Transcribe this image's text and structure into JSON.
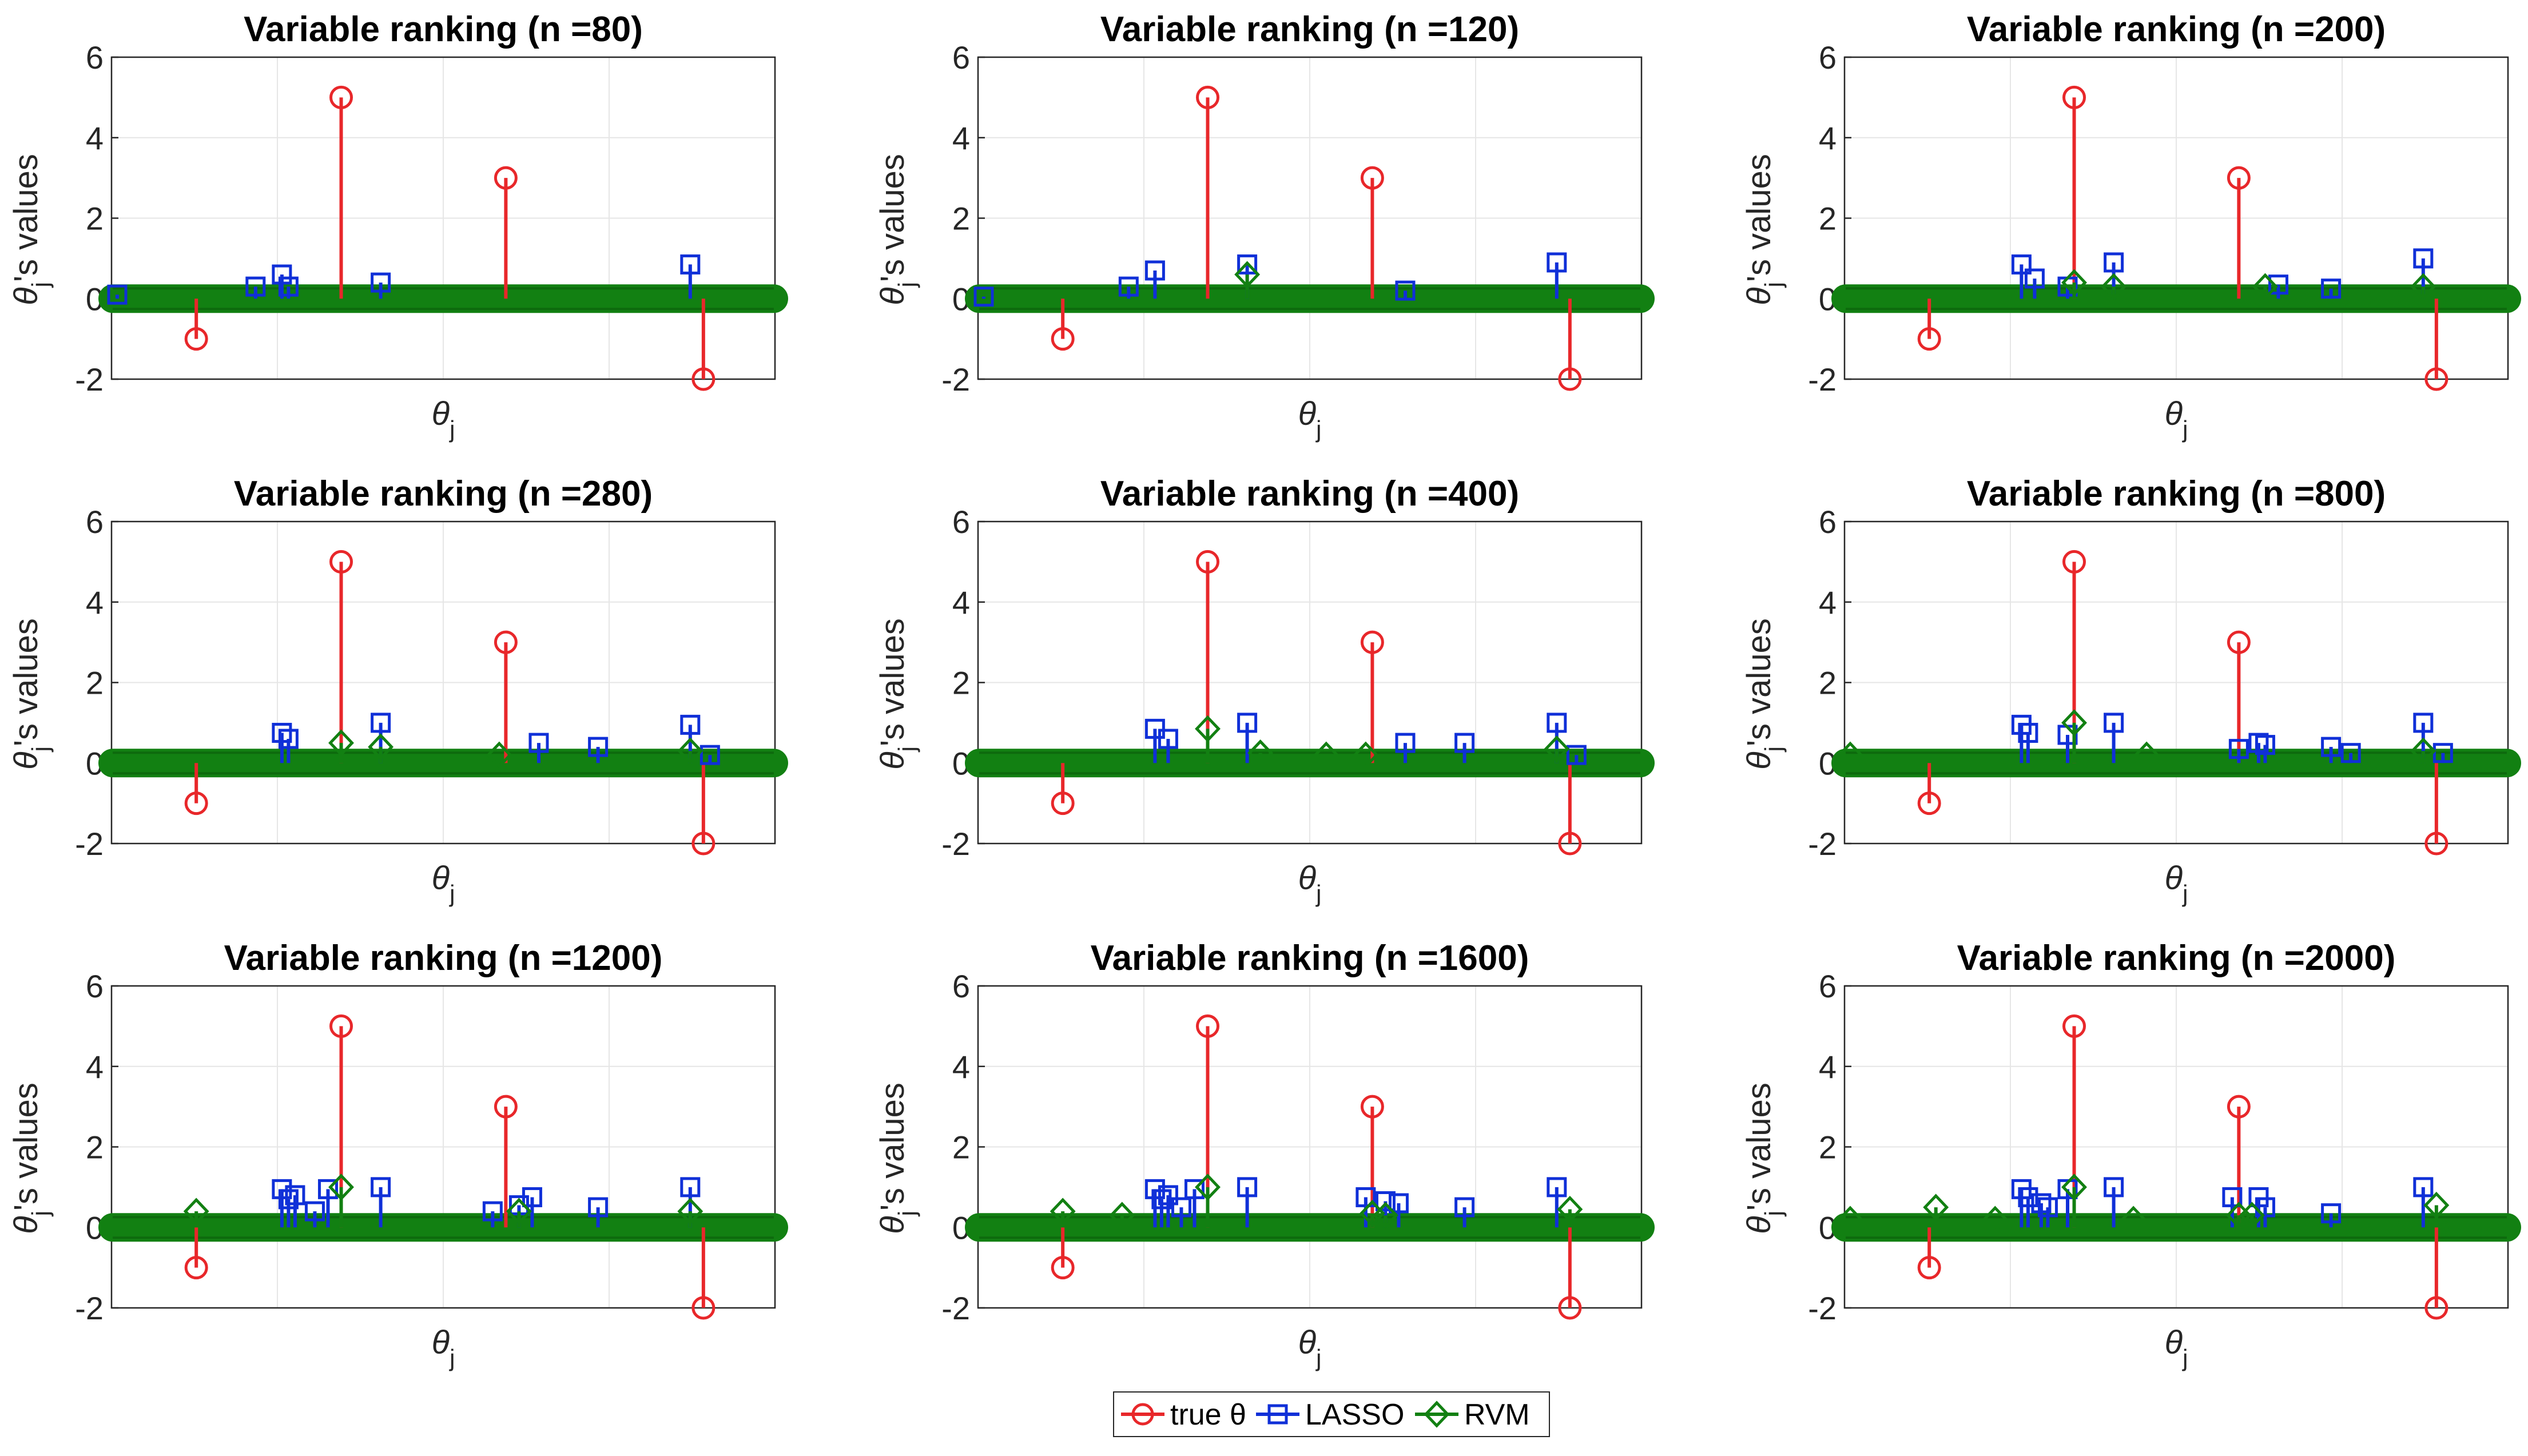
{
  "colors": {
    "true_theta": "#e8272a",
    "lasso": "#1030d8",
    "rvm": "#128012",
    "grid": "#e6e6e6",
    "axis": "#262626"
  },
  "legend": {
    "entries": [
      {
        "label": "true θ",
        "key": "true"
      },
      {
        "label": "LASSO",
        "key": "lasso"
      },
      {
        "label": "RVM",
        "key": "rvm"
      }
    ]
  },
  "chart_data": [
    {
      "type": "stem",
      "title": "Variable ranking (n =80)",
      "xlabel": "θj",
      "ylabel": "θj's values",
      "yticks": [
        "6",
        "4",
        "2",
        "0",
        "-2"
      ],
      "ylim": [
        -2,
        6
      ],
      "xlim": [
        1,
        100
      ],
      "series": [
        {
          "name": "true θ",
          "key": "true",
          "x": [
            13,
            35,
            60,
            90
          ],
          "values": [
            -1,
            5,
            3,
            -2
          ]
        },
        {
          "name": "LASSO",
          "key": "lasso",
          "x": [
            1,
            22,
            26,
            27,
            41,
            88
          ],
          "values": [
            0.1,
            0.3,
            0.6,
            0.3,
            0.4,
            0.85
          ]
        },
        {
          "name": "RVM",
          "key": "rvm",
          "x": [],
          "values": []
        }
      ]
    },
    {
      "type": "stem",
      "title": "Variable ranking (n =120)",
      "xlabel": "θj",
      "ylabel": "θj's values",
      "yticks": [
        "6",
        "4",
        "2",
        "0",
        "-2"
      ],
      "ylim": [
        -2,
        6
      ],
      "xlim": [
        1,
        100
      ],
      "series": [
        {
          "name": "true θ",
          "key": "true",
          "x": [
            13,
            35,
            60,
            90
          ],
          "values": [
            -1,
            5,
            3,
            -2
          ]
        },
        {
          "name": "LASSO",
          "key": "lasso",
          "x": [
            1,
            23,
            27,
            41,
            65,
            88
          ],
          "values": [
            0.05,
            0.3,
            0.7,
            0.85,
            0.2,
            0.9
          ]
        },
        {
          "name": "RVM",
          "key": "rvm",
          "x": [
            41
          ],
          "values": [
            0.6
          ]
        }
      ]
    },
    {
      "type": "stem",
      "title": "Variable ranking (n =200)",
      "xlabel": "θj",
      "ylabel": "θj's values",
      "yticks": [
        "6",
        "4",
        "2",
        "0",
        "-2"
      ],
      "ylim": [
        -2,
        6
      ],
      "xlim": [
        1,
        100
      ],
      "series": [
        {
          "name": "true θ",
          "key": "true",
          "x": [
            13,
            35,
            60,
            90
          ],
          "values": [
            -1,
            5,
            3,
            -2
          ]
        },
        {
          "name": "LASSO",
          "key": "lasso",
          "x": [
            27,
            29,
            34,
            41,
            66,
            74,
            88
          ],
          "values": [
            0.85,
            0.5,
            0.3,
            0.9,
            0.35,
            0.25,
            1.0
          ]
        },
        {
          "name": "RVM",
          "key": "rvm",
          "x": [
            35,
            41,
            64,
            88
          ],
          "values": [
            0.4,
            0.3,
            0.3,
            0.3
          ]
        }
      ]
    },
    {
      "type": "stem",
      "title": "Variable ranking (n =280)",
      "xlabel": "θj",
      "ylabel": "θj's values",
      "yticks": [
        "6",
        "4",
        "2",
        "0",
        "-2"
      ],
      "ylim": [
        -2,
        6
      ],
      "xlim": [
        1,
        100
      ],
      "series": [
        {
          "name": "true θ",
          "key": "true",
          "x": [
            13,
            35,
            60,
            90
          ],
          "values": [
            -1,
            5,
            3,
            -2
          ]
        },
        {
          "name": "LASSO",
          "key": "lasso",
          "x": [
            26,
            27,
            41,
            65,
            74,
            88,
            91
          ],
          "values": [
            0.75,
            0.6,
            1.0,
            0.5,
            0.4,
            0.95,
            0.2
          ]
        },
        {
          "name": "RVM",
          "key": "rvm",
          "x": [
            35,
            41,
            59,
            88
          ],
          "values": [
            0.5,
            0.4,
            0.2,
            0.3
          ]
        }
      ]
    },
    {
      "type": "stem",
      "title": "Variable ranking (n =400)",
      "xlabel": "θj",
      "ylabel": "θj's values",
      "yticks": [
        "6",
        "4",
        "2",
        "0",
        "-2"
      ],
      "ylim": [
        -2,
        6
      ],
      "xlim": [
        1,
        100
      ],
      "series": [
        {
          "name": "true θ",
          "key": "true",
          "x": [
            13,
            35,
            60,
            90
          ],
          "values": [
            -1,
            5,
            3,
            -2
          ]
        },
        {
          "name": "LASSO",
          "key": "lasso",
          "x": [
            27,
            29,
            41,
            65,
            74,
            88,
            91
          ],
          "values": [
            0.85,
            0.6,
            1.0,
            0.5,
            0.5,
            1.0,
            0.2
          ]
        },
        {
          "name": "RVM",
          "key": "rvm",
          "x": [
            35,
            43,
            53,
            59,
            88
          ],
          "values": [
            0.85,
            0.25,
            0.2,
            0.2,
            0.35
          ]
        }
      ]
    },
    {
      "type": "stem",
      "title": "Variable ranking (n =800)",
      "xlabel": "θj",
      "ylabel": "θj's values",
      "yticks": [
        "6",
        "4",
        "2",
        "0",
        "-2"
      ],
      "ylim": [
        -2,
        6
      ],
      "xlim": [
        1,
        100
      ],
      "series": [
        {
          "name": "true θ",
          "key": "true",
          "x": [
            13,
            35,
            60,
            90
          ],
          "values": [
            -1,
            5,
            3,
            -2
          ]
        },
        {
          "name": "LASSO",
          "key": "lasso",
          "x": [
            27,
            28,
            34,
            41,
            60,
            63,
            64,
            74,
            77,
            88,
            91
          ],
          "values": [
            0.95,
            0.75,
            0.7,
            1.0,
            0.35,
            0.5,
            0.45,
            0.4,
            0.25,
            1.0,
            0.25
          ]
        },
        {
          "name": "RVM",
          "key": "rvm",
          "x": [
            1,
            35,
            46,
            88
          ],
          "values": [
            0.2,
            1.0,
            0.2,
            0.3
          ]
        }
      ]
    },
    {
      "type": "stem",
      "title": "Variable ranking (n =1200)",
      "xlabel": "θj",
      "ylabel": "θj's values",
      "yticks": [
        "6",
        "4",
        "2",
        "0",
        "-2"
      ],
      "ylim": [
        -2,
        6
      ],
      "xlim": [
        1,
        100
      ],
      "series": [
        {
          "name": "true θ",
          "key": "true",
          "x": [
            13,
            35,
            60,
            90
          ],
          "values": [
            -1,
            5,
            3,
            -2
          ]
        },
        {
          "name": "LASSO",
          "key": "lasso",
          "x": [
            26,
            27,
            28,
            31,
            33,
            41,
            58,
            62,
            64,
            74,
            88
          ],
          "values": [
            0.95,
            0.7,
            0.8,
            0.4,
            0.95,
            1.0,
            0.4,
            0.55,
            0.75,
            0.5,
            1.0
          ]
        },
        {
          "name": "RVM",
          "key": "rvm",
          "x": [
            13,
            35,
            62,
            88
          ],
          "values": [
            0.4,
            1.0,
            0.4,
            0.4
          ]
        }
      ]
    },
    {
      "type": "stem",
      "title": "Variable ranking (n =1600)",
      "xlabel": "θj",
      "ylabel": "θj's values",
      "yticks": [
        "6",
        "4",
        "2",
        "0",
        "-2"
      ],
      "ylim": [
        -2,
        6
      ],
      "xlim": [
        1,
        100
      ],
      "series": [
        {
          "name": "true θ",
          "key": "true",
          "x": [
            13,
            35,
            60,
            90
          ],
          "values": [
            -1,
            5,
            3,
            -2
          ]
        },
        {
          "name": "LASSO",
          "key": "lasso",
          "x": [
            27,
            28,
            29,
            31,
            33,
            41,
            59,
            62,
            64,
            74,
            88
          ],
          "values": [
            0.95,
            0.7,
            0.8,
            0.5,
            0.95,
            1.0,
            0.75,
            0.65,
            0.6,
            0.5,
            1.0
          ]
        },
        {
          "name": "RVM",
          "key": "rvm",
          "x": [
            13,
            22,
            35,
            60,
            62,
            90
          ],
          "values": [
            0.4,
            0.3,
            1.0,
            0.35,
            0.3,
            0.45
          ]
        }
      ]
    },
    {
      "type": "stem",
      "title": "Variable ranking (n =2000)",
      "xlabel": "θj",
      "ylabel": "θj's values",
      "yticks": [
        "6",
        "4",
        "2",
        "0",
        "-2"
      ],
      "ylim": [
        -2,
        6
      ],
      "xlim": [
        1,
        100
      ],
      "series": [
        {
          "name": "true θ",
          "key": "true",
          "x": [
            13,
            35,
            60,
            90
          ],
          "values": [
            -1,
            5,
            3,
            -2
          ]
        },
        {
          "name": "LASSO",
          "key": "lasso",
          "x": [
            27,
            28,
            30,
            31,
            34,
            41,
            59,
            63,
            64,
            74,
            88
          ],
          "values": [
            0.95,
            0.75,
            0.6,
            0.5,
            0.95,
            1.0,
            0.75,
            0.75,
            0.5,
            0.35,
            1.0
          ]
        },
        {
          "name": "RVM",
          "key": "rvm",
          "x": [
            1,
            14,
            23,
            35,
            44,
            60,
            62,
            90
          ],
          "values": [
            0.2,
            0.5,
            0.2,
            1.0,
            0.2,
            0.3,
            0.3,
            0.55
          ]
        }
      ]
    }
  ]
}
